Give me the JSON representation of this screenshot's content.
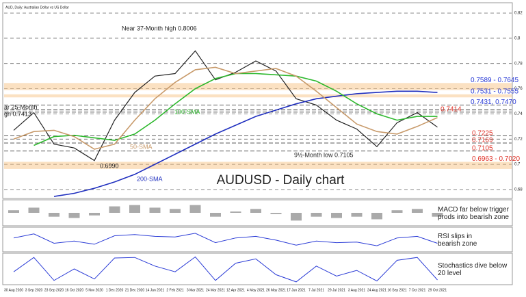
{
  "chart_data": [
    {
      "type": "line",
      "title": "AUDUSD - Daily chart",
      "subtitle": "AUD, Daily: Australian Dollar vs US Dollar",
      "categories": [
        "30 Aug 2020",
        "3 Sep 2020",
        "23 Sep 2020",
        "16 Oct 2020",
        "5 Nov 2020",
        "1 Dec 2020",
        "21 Dec 2020",
        "14 Jan 2021",
        "2 Feb 2021",
        "3 Mar 2021",
        "24 Mar 2021",
        "12 Apr 2021",
        "4 May 2021",
        "26 May 2021",
        "17 Jun 2021",
        "7 Jul 2021",
        "29 Jul 2021",
        "3 Aug 2021",
        "24 Aug 2021",
        "16 Sep 2021",
        "7 Oct 2021",
        "29 Oct 2021"
      ],
      "series": [
        {
          "color": "#222222",
          "values": [
            0.727,
            0.741,
            0.716,
            0.713,
            0.703,
            0.735,
            0.757,
            0.77,
            0.772,
            0.79,
            0.767,
            0.773,
            0.782,
            0.774,
            0.752,
            0.747,
            0.735,
            0.728,
            0.714,
            0.733,
            0.741,
            0.7295
          ]
        },
        {
          "name": "200-SMA",
          "color": "#1f2fbf",
          "values": [
            null,
            null,
            0.6745,
            0.677,
            0.681,
            0.686,
            0.692,
            0.7,
            0.708,
            0.716,
            0.724,
            0.731,
            0.738,
            0.743,
            0.748,
            0.752,
            0.754,
            0.756,
            0.757,
            0.758,
            0.758,
            0.757
          ]
        },
        {
          "name": "100-SMA",
          "color": "#2db82d",
          "values": [
            null,
            0.715,
            0.722,
            0.723,
            0.721,
            0.719,
            0.724,
            0.735,
            0.748,
            0.76,
            0.768,
            0.772,
            0.772,
            0.771,
            0.77,
            0.766,
            0.758,
            0.748,
            0.74,
            0.735,
            0.738,
            0.738
          ]
        },
        {
          "name": "50-SMA",
          "color": "#c89a6a",
          "values": [
            0.72,
            0.726,
            0.727,
            0.722,
            0.712,
            0.716,
            0.735,
            0.752,
            0.765,
            0.775,
            0.777,
            0.772,
            0.774,
            0.776,
            0.77,
            0.758,
            0.745,
            0.732,
            0.726,
            0.724,
            0.73,
            0.737
          ]
        }
      ],
      "levels": [
        {
          "label": "0.7589 - 0.7645",
          "values": [
            0.7589,
            0.7645
          ],
          "color": "#2a3bd6"
        },
        {
          "label": "0.7531 - 0.7555",
          "values": [
            0.7531,
            0.7555
          ],
          "color": "#2a3bd6"
        },
        {
          "label": "0.7431, 0.7470",
          "values": [
            0.7431,
            0.747
          ],
          "color": "#2a3bd6"
        },
        {
          "label": "0.7414",
          "values": [
            0.7414
          ],
          "color": "#e0352b"
        },
        {
          "label": "0.7225",
          "values": [
            0.7225
          ],
          "color": "#e0352b"
        },
        {
          "label": "0.7169",
          "values": [
            0.7169
          ],
          "color": "#e0352b"
        },
        {
          "label": "0.7105",
          "values": [
            0.7105
          ],
          "color": "#e0352b"
        },
        {
          "label": "0.6963 - 0.7020",
          "values": [
            0.6963,
            0.702
          ],
          "color": "#e0352b"
        }
      ],
      "annotations": [
        "Near 37-Month high 0.8006",
        "ar 25-Month",
        "gh 0.7413",
        "9½-Month low 0.7105",
        "0.6990"
      ],
      "ylim": [
        0.674,
        0.826
      ],
      "yticks": [
        0.68,
        0.7,
        0.72,
        0.74,
        0.76,
        0.78,
        0.8,
        0.82
      ],
      "grid": true
    },
    {
      "type": "bar",
      "note": "MACD far below trigger prods into bearish zone",
      "color": "#aaaaaa",
      "values": [
        0.002,
        0.004,
        -0.003,
        -0.004,
        -0.002,
        0.005,
        0.006,
        0.004,
        0.003,
        0.006,
        -0.003,
        0.001,
        0.003,
        -0.001,
        -0.006,
        -0.003,
        -0.004,
        -0.003,
        -0.005,
        0.002,
        0.003,
        -0.003
      ],
      "ylim": [
        -0.009,
        0.009
      ]
    },
    {
      "type": "line",
      "note": "RSI slips in bearish zone",
      "color": "#2a3bd6",
      "values": [
        55,
        68,
        38,
        45,
        35,
        62,
        66,
        60,
        58,
        70,
        40,
        55,
        60,
        48,
        32,
        45,
        40,
        42,
        30,
        55,
        60,
        38
      ],
      "ylim": [
        15,
        85
      ]
    },
    {
      "type": "line",
      "note": "Stochastics dive below 20 level",
      "color": "#2a3bd6",
      "values": [
        40,
        90,
        10,
        50,
        15,
        88,
        90,
        60,
        40,
        92,
        10,
        70,
        85,
        30,
        5,
        60,
        25,
        45,
        8,
        80,
        90,
        12
      ],
      "ylim": [
        0,
        100
      ]
    }
  ]
}
